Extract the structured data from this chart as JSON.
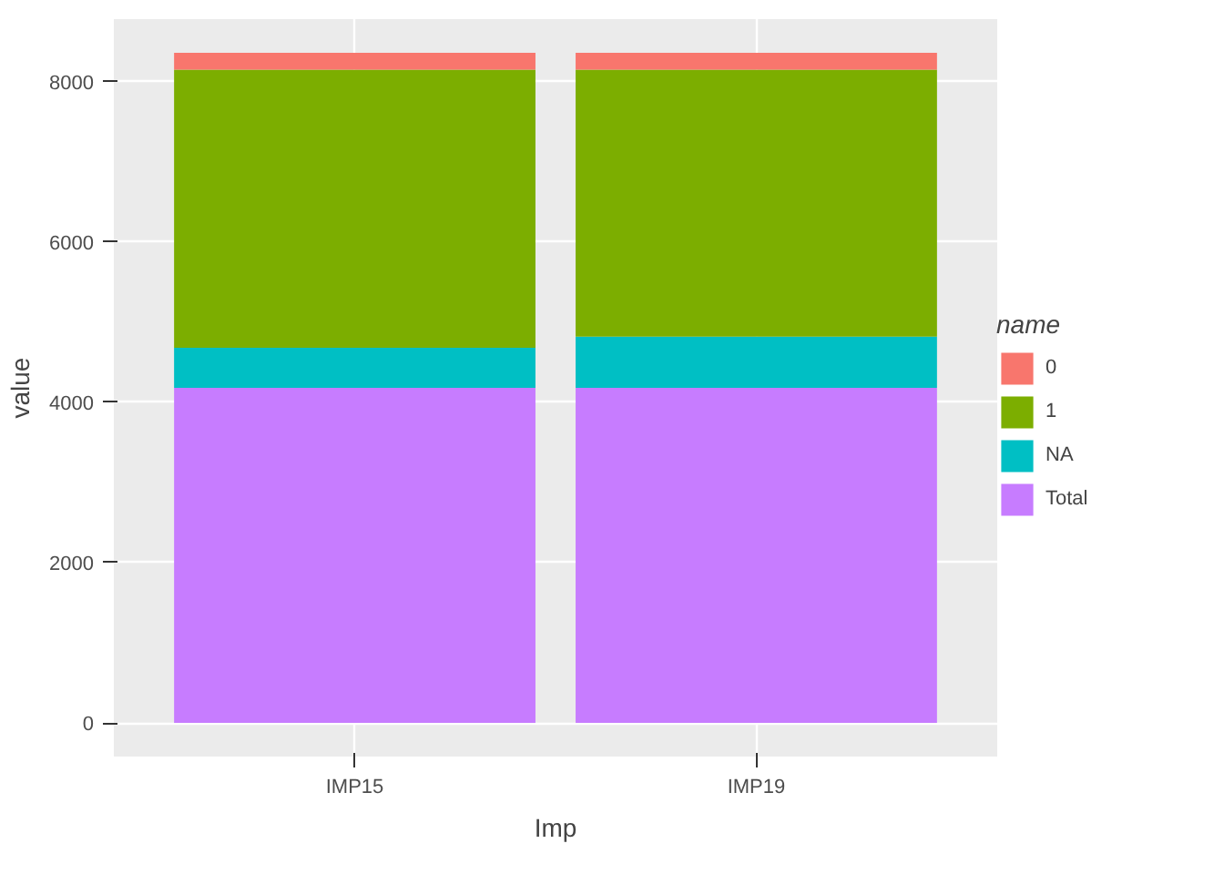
{
  "chart_data": {
    "type": "bar",
    "stacked": true,
    "xlabel": "Imp",
    "ylabel": "value",
    "legend_title": "name",
    "categories": [
      "IMP15",
      "IMP19"
    ],
    "series": [
      {
        "name": "Total",
        "color": "#c77cff",
        "values": [
          4180,
          4180
        ]
      },
      {
        "name": "NA",
        "color": "#00bfc4",
        "values": [
          500,
          640
        ]
      },
      {
        "name": "1",
        "color": "#7cae00",
        "values": [
          3470,
          3330
        ]
      },
      {
        "name": "0",
        "color": "#f8766d",
        "values": [
          210,
          210
        ]
      }
    ],
    "ylim": [
      -420,
      8780
    ],
    "yticks": [
      0,
      2000,
      4000,
      6000,
      8000
    ],
    "grid": true,
    "legend": "right"
  }
}
